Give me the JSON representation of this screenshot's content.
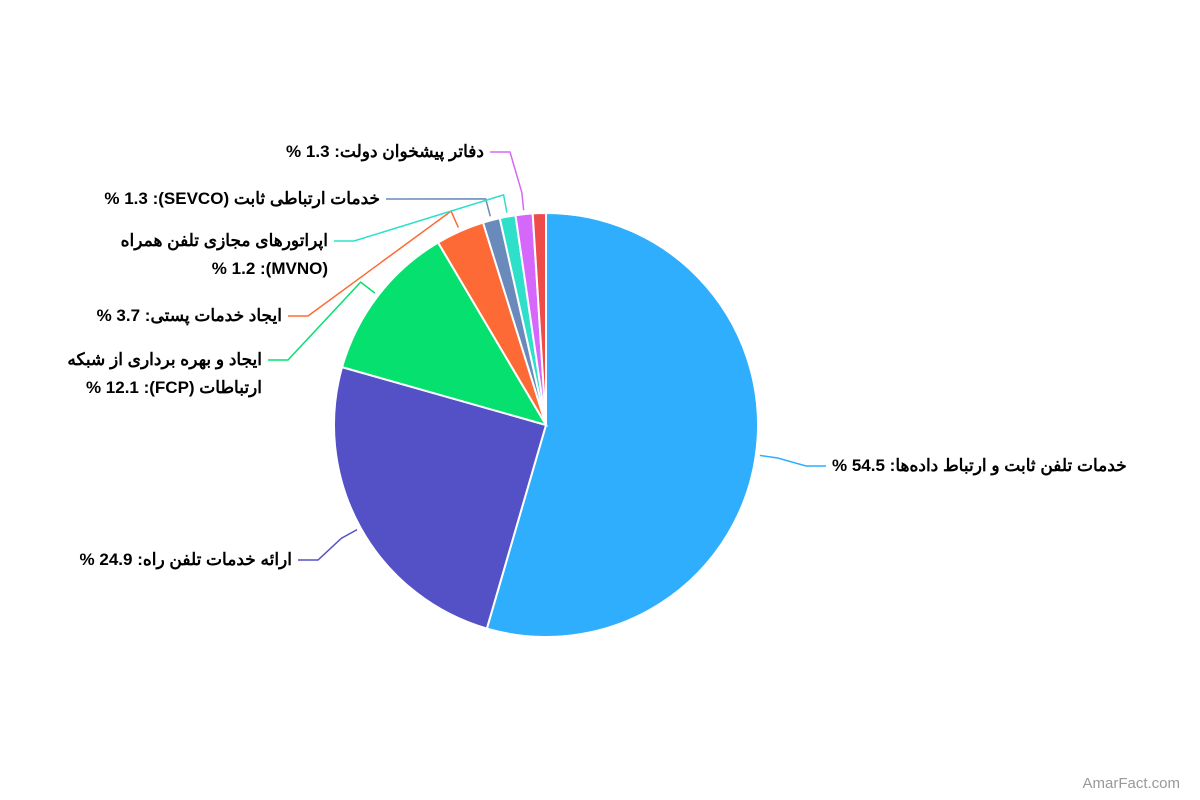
{
  "chart_data": {
    "type": "pie",
    "values": [
      54.5,
      24.9,
      12.1,
      3.7,
      1.3,
      1.2,
      1.3,
      1.0
    ],
    "value_labels": [
      "خدمات تلفن ثابت و ارتباط داده‌ها: 54.5 %",
      "ارائه خدمات تلفن راه: 24.9 %",
      "ایجاد و بهره برداری از شبکه ارتباطات (FCP): 12.1 %",
      "ایجاد خدمات پستی: 3.7 %",
      "خدمات ارتباطی ثابت (SEVCO): 1.3 %",
      "اپراتورهای مجازی تلفن همراه (MVNO): 1.2 %",
      "دفاتر پیشخوان دولت: 1.3 %",
      null
    ],
    "colors": [
      "#2eaefc",
      "#5450c6",
      "#05e06f",
      "#fe6a35",
      "#6b8abc",
      "#2ee0ca",
      "#d568fb",
      "#f04b4b"
    ]
  },
  "credit": "AmarFact.com"
}
